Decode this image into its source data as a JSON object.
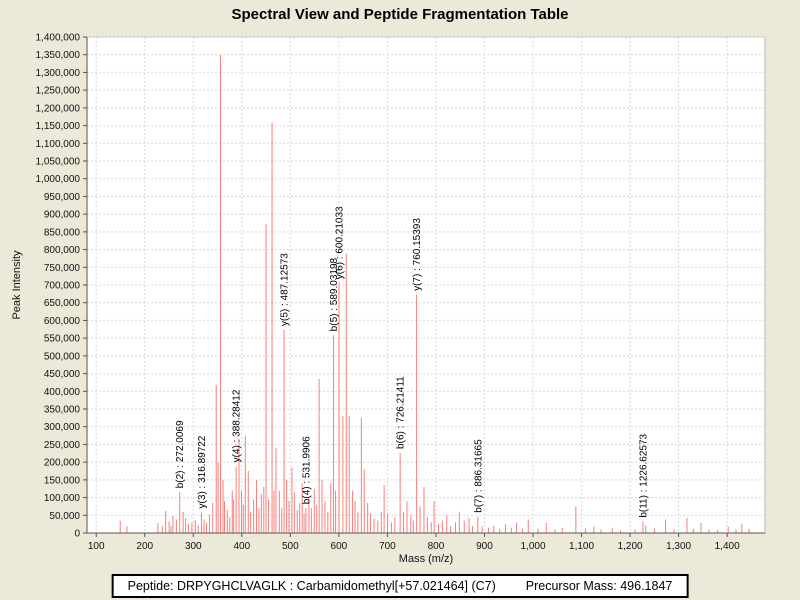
{
  "title": "Spectral View and Peptide Fragmentation Table",
  "footer": {
    "peptide": "Peptide: DRPYGHCLVAGLK : Carbamidomethyl[+57.021464] (C7)",
    "precursor": "Precursor Mass: 496.1847"
  },
  "colors": {
    "page_background": "#ece9d8",
    "plot_background": "#ffffff",
    "gridline": "#d9d9d9",
    "peak": "#f97f7a",
    "text": "#000000"
  },
  "chart_data": {
    "type": "bar",
    "title": "Spectral View and Peptide Fragmentation Table",
    "xlabel": "Mass (m/z)",
    "ylabel": "Peak Intensity",
    "xlim": [
      81,
      1478
    ],
    "ylim": [
      0,
      1400000
    ],
    "x_tick_start": 100,
    "x_tick_end": 1400,
    "x_tick_step": 100,
    "y_tick_step": 50000,
    "grid": true,
    "bar_color": "#f97f7a",
    "labeled_fragments": [
      {
        "ion": "b(2)",
        "mz": 272.0069,
        "label": "b(2) : 272.0069"
      },
      {
        "ion": "y(3)",
        "mz": 316.89722,
        "label": "y(3) : 316.89722"
      },
      {
        "ion": "y(4)",
        "mz": 388.28412,
        "label": "y(4) : 388.28412"
      },
      {
        "ion": "y(5)",
        "mz": 487.12573,
        "label": "y(5) : 487.12573"
      },
      {
        "ion": "b(4)",
        "mz": 531.9906,
        "label": "b(4) : 531.9906"
      },
      {
        "ion": "b(5)",
        "mz": 589.03198,
        "label": "b(5) : 589.03198"
      },
      {
        "ion": "y(6)",
        "mz": 600.21033,
        "label": "y(6) : 600.21033"
      },
      {
        "ion": "b(6)",
        "mz": 726.21411,
        "label": "b(6) : 726.21411"
      },
      {
        "ion": "y(7)",
        "mz": 760.15393,
        "label": "y(7) : 760.15393"
      },
      {
        "ion": "b(7)",
        "mz": 886.31665,
        "label": "b(7) : 886.31665"
      },
      {
        "ion": "b(11)",
        "mz": 1226.62573,
        "label": "b(11) : 1226.62573"
      }
    ],
    "peaks": [
      [
        149.5,
        35000
      ],
      [
        163.2,
        20000
      ],
      [
        227.1,
        28000
      ],
      [
        236.2,
        20000
      ],
      [
        243.1,
        62000
      ],
      [
        250.2,
        33000
      ],
      [
        254.2,
        20000
      ],
      [
        258.1,
        48000
      ],
      [
        265.2,
        38000
      ],
      [
        272.0069,
        115000,
        "b(2) : 272.0069"
      ],
      [
        279.1,
        60000
      ],
      [
        284.2,
        42000
      ],
      [
        290.1,
        26000
      ],
      [
        297.1,
        30000
      ],
      [
        304.2,
        36000
      ],
      [
        310.2,
        22000
      ],
      [
        316.89722,
        58000,
        "y(3) : 316.89722"
      ],
      [
        322.1,
        38000
      ],
      [
        327.2,
        30000
      ],
      [
        333.2,
        52000
      ],
      [
        340.1,
        85000
      ],
      [
        347.2,
        418000
      ],
      [
        351.1,
        200000
      ],
      [
        356.1,
        1350000
      ],
      [
        361.2,
        150000
      ],
      [
        364.3,
        90000
      ],
      [
        370.1,
        65000
      ],
      [
        375.2,
        45000
      ],
      [
        380.3,
        120000
      ],
      [
        383.2,
        95000
      ],
      [
        388.28412,
        188000,
        "y(4) : 388.28412"
      ],
      [
        394.2,
        265000
      ],
      [
        399.3,
        120000
      ],
      [
        403.1,
        80000
      ],
      [
        407.2,
        275000
      ],
      [
        413.3,
        175000
      ],
      [
        418.2,
        60000
      ],
      [
        424.3,
        95000
      ],
      [
        430.2,
        150000
      ],
      [
        435.3,
        70000
      ],
      [
        440.2,
        110000
      ],
      [
        445.3,
        130000
      ],
      [
        449.9,
        872000
      ],
      [
        455.2,
        95000
      ],
      [
        462.3,
        1158000
      ],
      [
        466.2,
        120000
      ],
      [
        470.3,
        240000
      ],
      [
        477.2,
        120000
      ],
      [
        482.3,
        70000
      ],
      [
        487.12573,
        573000,
        "y(5) : 487.12573"
      ],
      [
        492.3,
        150000
      ],
      [
        497.2,
        90000
      ],
      [
        503.3,
        185000
      ],
      [
        508.2,
        115000
      ],
      [
        514.3,
        65000
      ],
      [
        519.2,
        85000
      ],
      [
        524.3,
        140000
      ],
      [
        528.2,
        55000
      ],
      [
        531.9906,
        70000,
        "b(4) : 531.9906"
      ],
      [
        538.3,
        100000
      ],
      [
        543.2,
        70000
      ],
      [
        549.3,
        125000
      ],
      [
        554.2,
        80000
      ],
      [
        559.3,
        435000
      ],
      [
        565.2,
        150000
      ],
      [
        571.3,
        90000
      ],
      [
        577.2,
        60000
      ],
      [
        583.3,
        140000
      ],
      [
        589.03198,
        558000,
        "b(5) : 589.03198"
      ],
      [
        593.2,
        120000
      ],
      [
        600.21033,
        705000,
        "y(6) : 600.21033"
      ],
      [
        608.3,
        330000
      ],
      [
        615.2,
        788000
      ],
      [
        621.3,
        330000
      ],
      [
        628.2,
        120000
      ],
      [
        633.3,
        90000
      ],
      [
        639.2,
        60000
      ],
      [
        646.3,
        325000
      ],
      [
        652.2,
        180000
      ],
      [
        659.3,
        85000
      ],
      [
        665.2,
        55000
      ],
      [
        672.3,
        40000
      ],
      [
        680.2,
        35000
      ],
      [
        687.3,
        60000
      ],
      [
        693.2,
        135000
      ],
      [
        700.3,
        55000
      ],
      [
        708.2,
        30000
      ],
      [
        715.3,
        45000
      ],
      [
        726.21411,
        226000,
        "b(6) : 726.21411"
      ],
      [
        733.2,
        60000
      ],
      [
        740.3,
        90000
      ],
      [
        748.2,
        50000
      ],
      [
        753.3,
        35000
      ],
      [
        760.15393,
        672000,
        "y(7) : 760.15393"
      ],
      [
        767.2,
        75000
      ],
      [
        775.3,
        130000
      ],
      [
        782.2,
        45000
      ],
      [
        790.3,
        30000
      ],
      [
        796.2,
        90000
      ],
      [
        805.3,
        25000
      ],
      [
        813.2,
        35000
      ],
      [
        822.3,
        50000
      ],
      [
        830.2,
        20000
      ],
      [
        840.3,
        30000
      ],
      [
        848.2,
        60000
      ],
      [
        858.3,
        35000
      ],
      [
        868.2,
        42000
      ],
      [
        875.3,
        20000
      ],
      [
        886.31665,
        46000,
        "b(7) : 886.31665"
      ],
      [
        895.2,
        18000
      ],
      [
        908.3,
        15000
      ],
      [
        919.2,
        20000
      ],
      [
        931.3,
        12000
      ],
      [
        943.2,
        25000
      ],
      [
        955.3,
        15000
      ],
      [
        966.2,
        30000
      ],
      [
        978.3,
        12000
      ],
      [
        990.2,
        38000
      ],
      [
        1010.3,
        12000
      ],
      [
        1027.2,
        28000
      ],
      [
        1045.3,
        10000
      ],
      [
        1060.2,
        15000
      ],
      [
        1088.3,
        75000
      ],
      [
        1108.2,
        12000
      ],
      [
        1125.3,
        18000
      ],
      [
        1140.2,
        10000
      ],
      [
        1163.3,
        15000
      ],
      [
        1180.2,
        8000
      ],
      [
        1210.3,
        10000
      ],
      [
        1226.62573,
        32000,
        "b(11) : 1226.62573"
      ],
      [
        1232.4,
        22000
      ],
      [
        1250.3,
        12000
      ],
      [
        1273.2,
        38000
      ],
      [
        1290.3,
        10000
      ],
      [
        1317.2,
        42000
      ],
      [
        1330.3,
        12000
      ],
      [
        1346.2,
        28000
      ],
      [
        1362.3,
        10000
      ],
      [
        1380.2,
        8000
      ],
      [
        1402.3,
        18000
      ],
      [
        1418.2,
        10000
      ],
      [
        1430.3,
        26000
      ],
      [
        1445.2,
        12000
      ]
    ]
  }
}
